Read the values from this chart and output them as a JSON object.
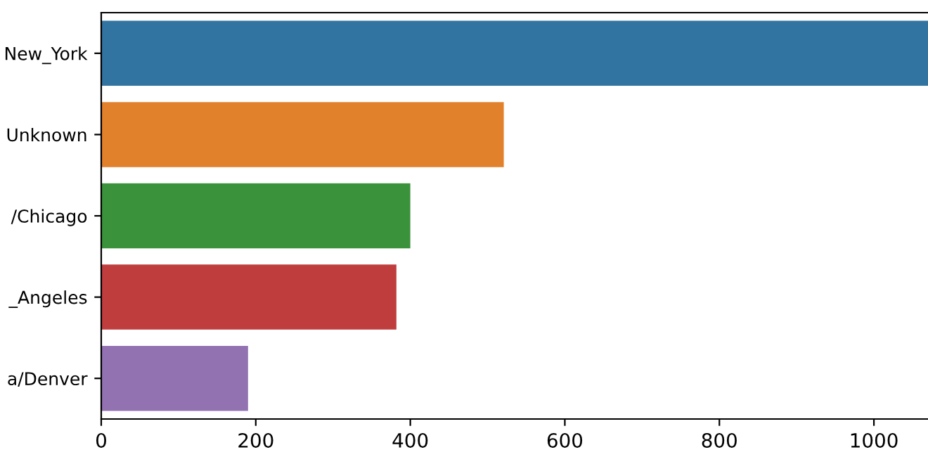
{
  "chart_data": {
    "type": "bar",
    "orientation": "horizontal",
    "categories": [
      "New_York",
      "Unknown",
      "/Chicago",
      "_Angeles",
      "a/Denver"
    ],
    "values": [
      1070,
      521,
      400,
      382,
      190
    ],
    "colors": [
      "#3274a1",
      "#e1812c",
      "#3a923a",
      "#c03d3e",
      "#9372b2"
    ],
    "xlim": [
      0,
      1070
    ],
    "xticks": [
      0,
      200,
      400,
      600,
      800,
      1000
    ],
    "grid": false
  }
}
